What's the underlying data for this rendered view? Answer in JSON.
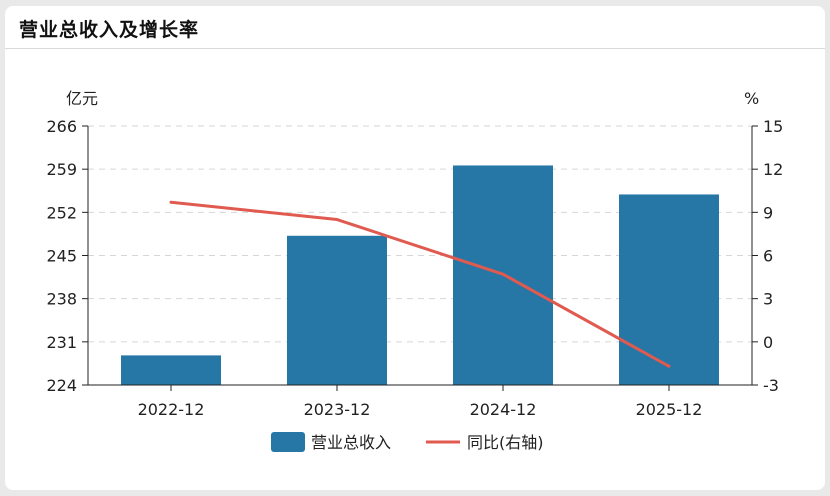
{
  "card": {
    "title": "营业总收入及增长率"
  },
  "chart_data": {
    "type": "bar",
    "categories": [
      "2022-12",
      "2023-12",
      "2024-12",
      "2025-12"
    ],
    "series": [
      {
        "name": "营业总收入",
        "type": "bar",
        "axis": "left",
        "values": [
          228.8,
          248.2,
          259.6,
          254.9
        ]
      },
      {
        "name": "同比(右轴)",
        "type": "line",
        "axis": "right",
        "values": [
          9.7,
          8.5,
          4.7,
          -1.7
        ]
      }
    ],
    "left_axis": {
      "unit": "亿元",
      "ylim": [
        224,
        266
      ],
      "ticks": [
        224,
        231,
        238,
        245,
        252,
        259,
        266
      ]
    },
    "right_axis": {
      "unit": "%",
      "ylim": [
        -3,
        15
      ],
      "ticks": [
        -3,
        0,
        3,
        6,
        9,
        12,
        15
      ]
    },
    "grid": true,
    "legend": "bottom-center",
    "colors": {
      "bar": "#2676a6",
      "line": "#e05a50",
      "grid": "#d6d6d6",
      "axis": "#222222"
    }
  }
}
